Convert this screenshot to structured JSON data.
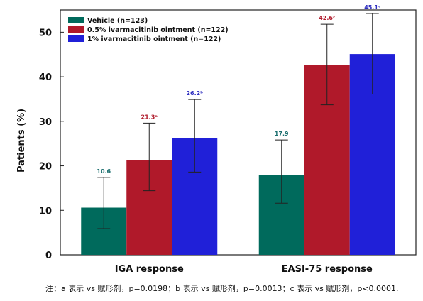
{
  "chart_data": {
    "type": "bar",
    "ylabel": "Patients (%)",
    "ylim": [
      0,
      55
    ],
    "yticks": [
      0,
      10,
      20,
      30,
      40,
      50
    ],
    "grid": false,
    "legend_position": "top-left",
    "categories": [
      "IGA response",
      "EASI-75 response"
    ],
    "series": [
      {
        "name": "Vehicle (n=123)",
        "color": "#006a5c",
        "values": [
          10.6,
          17.9
        ],
        "error_low": [
          5.9,
          11.6
        ],
        "error_high": [
          17.4,
          25.8
        ],
        "labels": [
          "10.6",
          "17.9"
        ],
        "label_color": "#1a6e6e"
      },
      {
        "name": "0.5% ivarmacitinib ointment (n=122)",
        "color": "#b0192a",
        "values": [
          21.3,
          42.6
        ],
        "error_low": [
          14.4,
          33.7
        ],
        "error_high": [
          29.6,
          51.8
        ],
        "labels": [
          "21.3ᵃ",
          "42.6ᶜ"
        ],
        "label_color": "#b0192a"
      },
      {
        "name": "1% ivarmacitinib ointment (n=122)",
        "color": "#2020d8",
        "values": [
          26.2,
          45.1
        ],
        "error_low": [
          18.6,
          36.1
        ],
        "error_high": [
          34.9,
          54.2
        ],
        "labels": [
          "26.2ᵇ",
          "45.1ᶜ"
        ],
        "label_color": "#3030c0"
      }
    ]
  },
  "footnote": "注：a 表示 vs 赋形剂，p=0.0198；b 表示 vs 赋形剂，p=0.0013；c 表示 vs 赋形剂，p<0.0001."
}
